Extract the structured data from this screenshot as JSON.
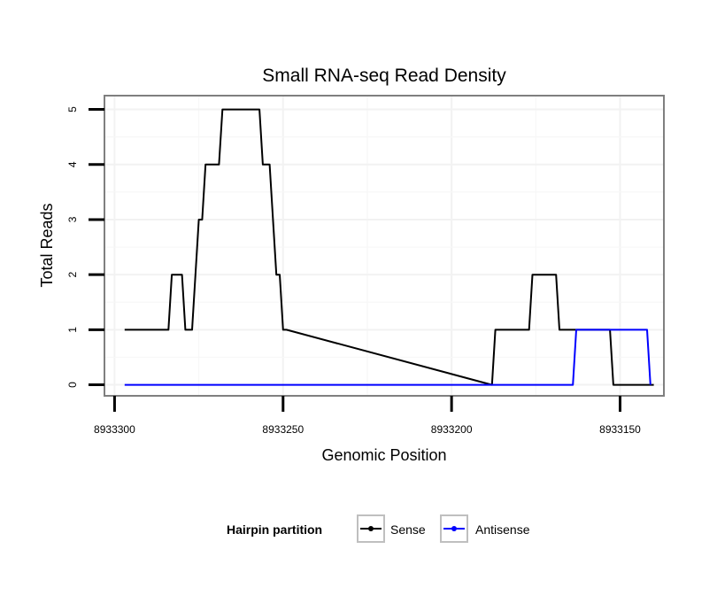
{
  "chart_data": {
    "type": "line",
    "title": "Small RNA-seq Read Density",
    "xlabel": "Genomic Position",
    "ylabel": "Total Reads",
    "x_reversed": true,
    "xlim": [
      8933303,
      8933137
    ],
    "ylim": [
      -0.2,
      5.25
    ],
    "x_ticks": [
      8933300,
      8933250,
      8933200,
      8933150
    ],
    "x_tick_labels": [
      "8933300",
      "8933250",
      "8933200",
      "8933150"
    ],
    "y_ticks": [
      0,
      1,
      2,
      3,
      4,
      5
    ],
    "y_tick_labels": [
      "0",
      "1",
      "2",
      "3",
      "4",
      "5"
    ],
    "grid": true,
    "legend": {
      "title": "Hairpin partition",
      "position": "bottom",
      "entries": [
        "Sense",
        "Antisense"
      ]
    },
    "series": [
      {
        "name": "Sense",
        "color": "#000000",
        "x": [
          8933297,
          8933284,
          8933283,
          8933280,
          8933279,
          8933277,
          8933276,
          8933275,
          8933274,
          8933273,
          8933272,
          8933269,
          8933268,
          8933257,
          8933256,
          8933254,
          8933253,
          8933252,
          8933251,
          8933250,
          8933249,
          8933188,
          8933187,
          8933177,
          8933176,
          8933169,
          8933168,
          8933153,
          8933152,
          8933147,
          8933146,
          8933140
        ],
        "y": [
          1,
          1,
          2,
          2,
          1,
          1,
          2,
          3,
          3,
          4,
          4,
          4,
          5,
          5,
          4,
          4,
          3,
          2,
          2,
          1,
          1,
          0,
          1,
          1,
          2,
          2,
          1,
          1,
          0,
          0,
          0,
          0
        ]
      },
      {
        "name": "Antisense",
        "color": "#0000ff",
        "x": [
          8933297,
          8933164,
          8933163,
          8933142,
          8933141
        ],
        "y": [
          0,
          0,
          1,
          1,
          0
        ]
      }
    ]
  }
}
